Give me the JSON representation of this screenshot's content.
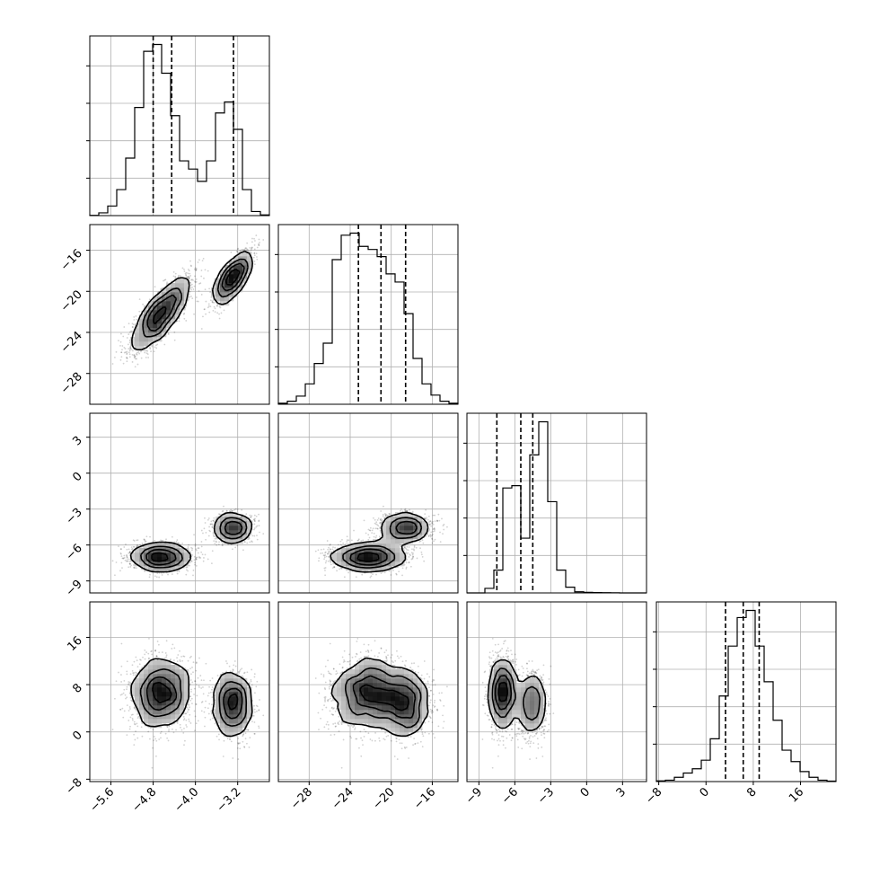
{
  "chart_data": {
    "type": "corner",
    "parameters": [
      {
        "range": [
          -6.0,
          -2.6
        ],
        "ticks": [
          -5.6,
          -4.8,
          -4.0,
          -3.2
        ],
        "tick_labels": [
          "−5.6",
          "−4.8",
          "−4.0",
          "−3.2"
        ]
      },
      {
        "range": [
          -31.0,
          -13.5
        ],
        "ticks": [
          -28,
          -24,
          -20,
          -16
        ],
        "tick_labels": [
          "−28",
          "−24",
          "−20",
          "−16"
        ]
      },
      {
        "range": [
          -10.0,
          5.0
        ],
        "ticks": [
          -9,
          -6,
          -3,
          0,
          3
        ],
        "tick_labels": [
          "−9",
          "−6",
          "−3",
          "0",
          "3"
        ]
      },
      {
        "range": [
          -8.4,
          22.0
        ],
        "ticks": [
          -8,
          0,
          8,
          16
        ],
        "tick_labels": [
          "−8",
          "0",
          "8",
          "16"
        ]
      }
    ],
    "histograms": [
      {
        "param": 0,
        "bins": 20,
        "counts": [
          0.2,
          2,
          7,
          19,
          42,
          79,
          120,
          125,
          104,
          73,
          40,
          34,
          25,
          40,
          75,
          83,
          63,
          19,
          3,
          0.5
        ],
        "quantiles": [
          -4.8,
          -4.45,
          -3.28
        ]
      },
      {
        "param": 1,
        "bins": 20,
        "counts": [
          1,
          3,
          8,
          20,
          40,
          60,
          142,
          166,
          168,
          155,
          152,
          145,
          128,
          120,
          89,
          45,
          20,
          9,
          3,
          1
        ],
        "quantiles": [
          -23.2,
          -21.0,
          -18.6
        ]
      },
      {
        "param": 2,
        "bins": 20,
        "counts": [
          0,
          0,
          4,
          20,
          92,
          94,
          48,
          121,
          150,
          80,
          20,
          5,
          1,
          0.5,
          0.3,
          0.2,
          0.1,
          0,
          0,
          0
        ],
        "quantiles": [
          -7.5,
          -5.5,
          -4.5
        ]
      },
      {
        "param": 3,
        "bins": 20,
        "counts": [
          0.5,
          1,
          3,
          6,
          9,
          15,
          30,
          60,
          95,
          115,
          120,
          95,
          70,
          43,
          22,
          14,
          7,
          3,
          1,
          0.3
        ],
        "quantiles": [
          3.3,
          6.3,
          9.0
        ]
      }
    ],
    "joint_components": [
      {
        "weight": 0.62,
        "mean": [
          -4.65,
          -22.2,
          -7.0,
          6.5
        ],
        "sd": [
          0.28,
          1.8,
          0.55,
          3.0
        ],
        "corr01": 0.8
      },
      {
        "weight": 0.38,
        "mean": [
          -3.3,
          -18.7,
          -4.6,
          4.6
        ],
        "sd": [
          0.18,
          1.3,
          0.6,
          2.8
        ],
        "corr01": 0.75
      }
    ],
    "title": "",
    "xlabel": "",
    "ylabel": "",
    "grid": true,
    "contour_levels": 4,
    "quantile_line_style": "dashed"
  }
}
